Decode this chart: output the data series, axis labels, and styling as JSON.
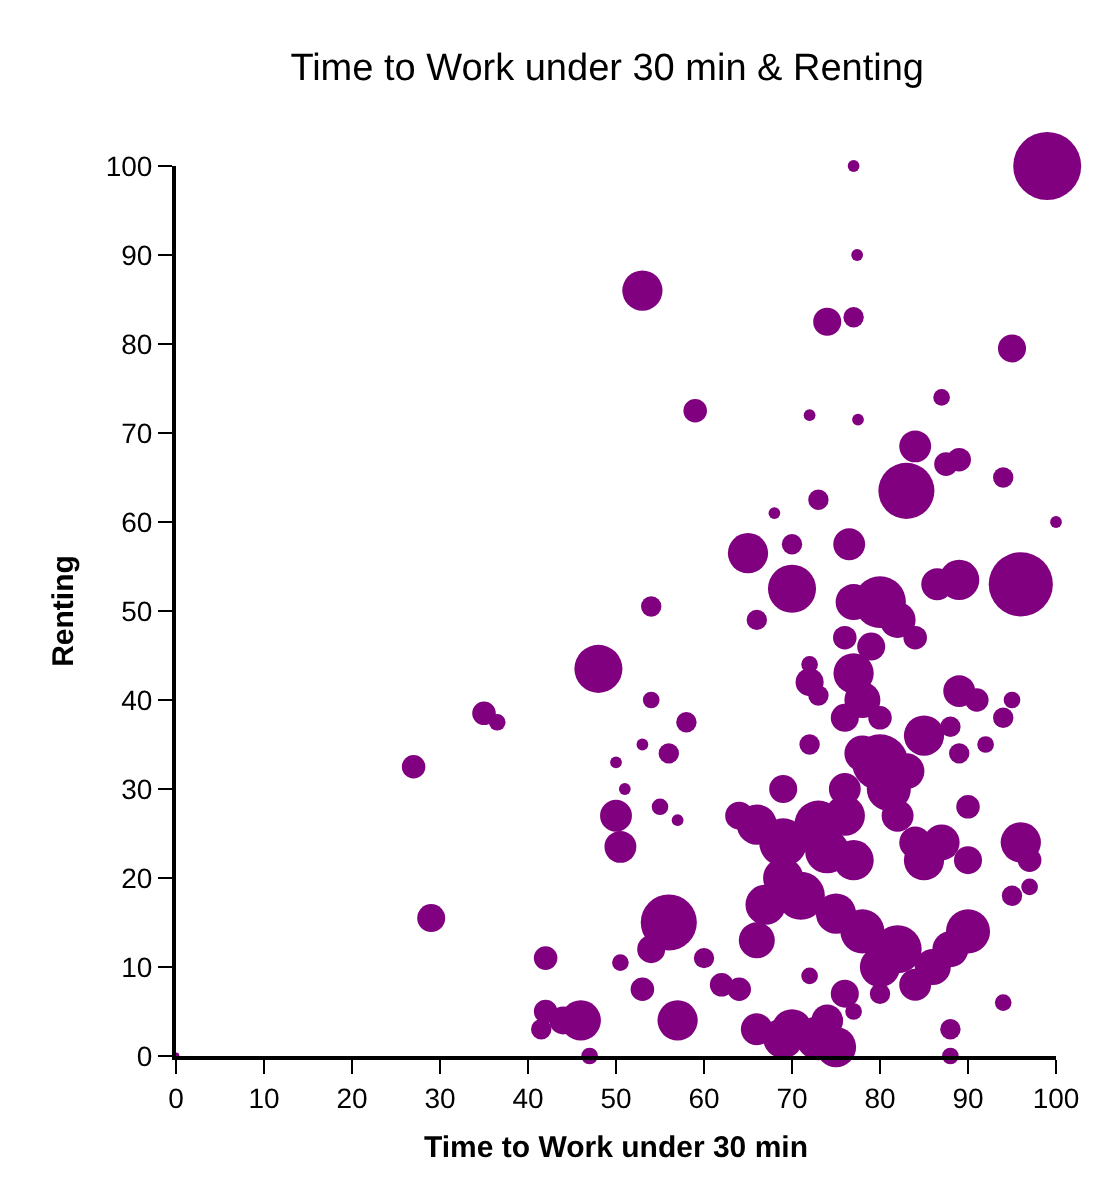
{
  "chart_data": {
    "type": "bubble",
    "title": "Time to Work under 30 min & Renting",
    "xlabel": "Time to Work under 30 min",
    "ylabel": "Renting",
    "xlim": [
      0,
      100
    ],
    "xticks": [
      0,
      10,
      20,
      30,
      40,
      50,
      60,
      70,
      80,
      90,
      100
    ],
    "ylim": [
      0,
      100
    ],
    "yticks": [
      0,
      10,
      20,
      30,
      40,
      50,
      60,
      70,
      80,
      90,
      100
    ],
    "grid": false,
    "legend": false,
    "series": [
      {
        "color": "#800080",
        "x": [
          99,
          77,
          77.4,
          53,
          74,
          77,
          59,
          72,
          77.5,
          87,
          95,
          84,
          83,
          89,
          87.5,
          73,
          94,
          100,
          68,
          70,
          76.5,
          65,
          54,
          66,
          70,
          77,
          80,
          82,
          76,
          84,
          79,
          89,
          86.5,
          96,
          48,
          35,
          36.5,
          27,
          29,
          54,
          58,
          56,
          53,
          50,
          51,
          50,
          50.5,
          55,
          57,
          72,
          73,
          72,
          77,
          78,
          76,
          80,
          85,
          88,
          89,
          91,
          95,
          94,
          83,
          80,
          78,
          76,
          72,
          69,
          66,
          69,
          64,
          73,
          76,
          74,
          77,
          81,
          82,
          85,
          84,
          87,
          90,
          96,
          97,
          90,
          95,
          97,
          89,
          92,
          56,
          66,
          67,
          71,
          69,
          75,
          78,
          82,
          86,
          88,
          90,
          84,
          80,
          77,
          72,
          66,
          70,
          69,
          73,
          75,
          74,
          57,
          53,
          54,
          50.5,
          42,
          42,
          44,
          46,
          41.5,
          47,
          88,
          88,
          94,
          0,
          80,
          76,
          64,
          60,
          62
        ],
        "values": [
          100,
          100,
          90,
          86,
          82.5,
          83,
          72.5,
          72,
          71.5,
          74,
          79.5,
          68.5,
          63.5,
          67,
          66.5,
          62.5,
          65,
          60,
          61,
          57.5,
          57.5,
          56.5,
          50.5,
          49,
          52.5,
          51,
          51,
          49,
          47,
          47,
          46,
          53.5,
          53,
          53,
          43.5,
          38.5,
          37.5,
          32.5,
          15.5,
          40,
          37.5,
          34,
          35,
          33,
          30,
          27,
          23.5,
          28,
          26.5,
          42,
          40.5,
          44,
          43,
          40,
          38,
          38,
          36,
          37,
          41,
          40,
          40,
          38,
          32,
          33,
          34,
          30,
          35,
          30,
          26,
          24,
          27,
          26,
          27,
          23,
          22,
          30,
          27,
          22,
          24,
          24,
          22,
          24,
          22,
          28,
          18,
          19,
          34,
          35,
          15,
          13,
          17,
          18,
          20,
          16,
          14,
          12,
          10,
          12,
          14,
          8,
          7,
          5,
          9,
          3,
          3,
          2,
          2,
          1,
          4,
          4,
          7.5,
          12,
          10.5,
          11,
          5,
          4,
          4,
          3,
          0,
          3,
          0,
          6,
          0,
          10,
          7,
          7.5,
          11,
          8
        ],
        "sizes": [
          1,
          0.03,
          0.03,
          0.35,
          0.17,
          0.09,
          0.12,
          0.03,
          0.03,
          0.06,
          0.17,
          0.22,
          0.68,
          0.12,
          0.12,
          0.09,
          0.09,
          0.03,
          0.03,
          0.09,
          0.22,
          0.35,
          0.09,
          0.09,
          0.5,
          0.28,
          0.58,
          0.28,
          0.12,
          0.12,
          0.17,
          0.35,
          0.22,
          0.89,
          0.5,
          0.12,
          0.06,
          0.12,
          0.17,
          0.06,
          0.09,
          0.09,
          0.03,
          0.03,
          0.03,
          0.22,
          0.22,
          0.06,
          0.03,
          0.17,
          0.09,
          0.06,
          0.35,
          0.28,
          0.17,
          0.12,
          0.35,
          0.09,
          0.22,
          0.12,
          0.06,
          0.09,
          0.28,
          0.68,
          0.28,
          0.22,
          0.09,
          0.17,
          0.35,
          0.5,
          0.17,
          0.5,
          0.35,
          0.42,
          0.35,
          0.42,
          0.22,
          0.35,
          0.22,
          0.28,
          0.17,
          0.35,
          0.12,
          0.12,
          0.09,
          0.06,
          0.09,
          0.06,
          0.68,
          0.28,
          0.35,
          0.5,
          0.35,
          0.35,
          0.42,
          0.5,
          0.28,
          0.28,
          0.42,
          0.22,
          0.09,
          0.06,
          0.06,
          0.22,
          0.35,
          0.35,
          0.42,
          0.35,
          0.22,
          0.35,
          0.12,
          0.17,
          0.06,
          0.12,
          0.12,
          0.17,
          0.35,
          0.09,
          0.06,
          0.09,
          0.06,
          0.06,
          0.01,
          0.35,
          0.17,
          0.12,
          0.09,
          0.12
        ]
      }
    ]
  }
}
